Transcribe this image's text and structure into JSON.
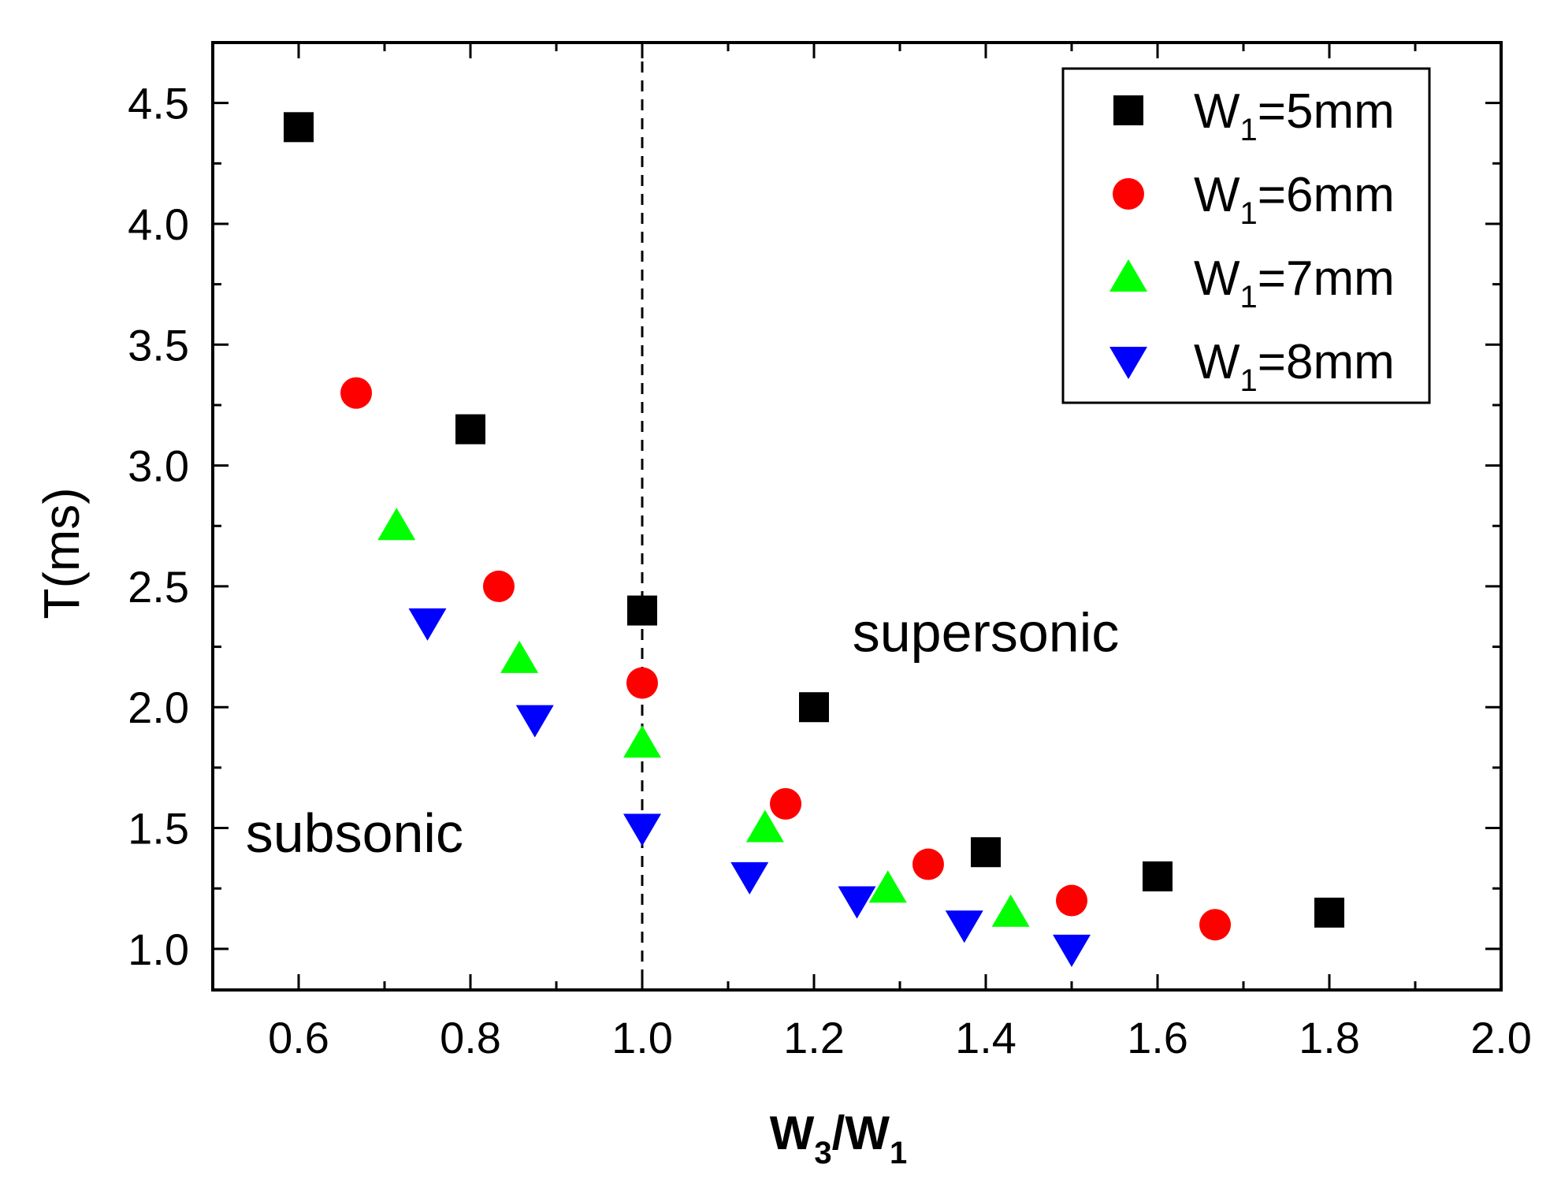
{
  "chart_data": {
    "type": "scatter",
    "xlabel": {
      "main": "W",
      "sub1": "3",
      "sep": "/W",
      "sub2": "1"
    },
    "ylabel": "T(ms)",
    "xlim": [
      0.5,
      2.0
    ],
    "ylim": [
      0.83,
      4.75
    ],
    "xticks": [
      0.6,
      0.8,
      1.0,
      1.2,
      1.4,
      1.6,
      1.8,
      2.0
    ],
    "xtick_labels": [
      "0.6",
      "0.8",
      "1.0",
      "1.2",
      "1.4",
      "1.6",
      "1.8",
      "2.0"
    ],
    "yticks": [
      1.0,
      1.5,
      2.0,
      2.5,
      3.0,
      3.5,
      4.0,
      4.5
    ],
    "ytick_labels": [
      "1.0",
      "1.5",
      "2.0",
      "2.5",
      "3.0",
      "3.5",
      "4.0",
      "4.5"
    ],
    "grid": false,
    "legend_position": "top-right",
    "reference_line": {
      "x": 1.0,
      "style": "dashed"
    },
    "annotations": [
      {
        "text": "subsonic",
        "x": 0.665,
        "y": 1.4
      },
      {
        "text": "supersonic",
        "x": 1.4,
        "y": 2.23
      }
    ],
    "series": [
      {
        "name_main": "W",
        "name_sub": "1",
        "name_rest": "=5mm",
        "marker": "square",
        "color": "#000000",
        "x": [
          0.6,
          0.8,
          1.0,
          1.2,
          1.4,
          1.6,
          1.8
        ],
        "y": [
          4.4,
          3.15,
          2.4,
          2.0,
          1.4,
          1.3,
          1.15
        ]
      },
      {
        "name_main": "W",
        "name_sub": "1",
        "name_rest": "=6mm",
        "marker": "circle",
        "color": "#ff0000",
        "x": [
          0.667,
          0.833,
          1.0,
          1.167,
          1.333,
          1.5,
          1.667
        ],
        "y": [
          3.3,
          2.5,
          2.1,
          1.6,
          1.35,
          1.2,
          1.1
        ]
      },
      {
        "name_main": "W",
        "name_sub": "1",
        "name_rest": "=7mm",
        "marker": "triangle-up",
        "color": "#00ff00",
        "x": [
          0.714,
          0.857,
          1.0,
          1.143,
          1.286,
          1.429
        ],
        "y": [
          2.75,
          2.2,
          1.85,
          1.5,
          1.25,
          1.15
        ]
      },
      {
        "name_main": "W",
        "name_sub": "1",
        "name_rest": "=8mm",
        "marker": "triangle-down",
        "color": "#0000ff",
        "x": [
          0.75,
          0.875,
          1.0,
          1.125,
          1.25,
          1.375,
          1.5
        ],
        "y": [
          2.35,
          1.95,
          1.5,
          1.3,
          1.2,
          1.1,
          1.0
        ]
      }
    ]
  }
}
